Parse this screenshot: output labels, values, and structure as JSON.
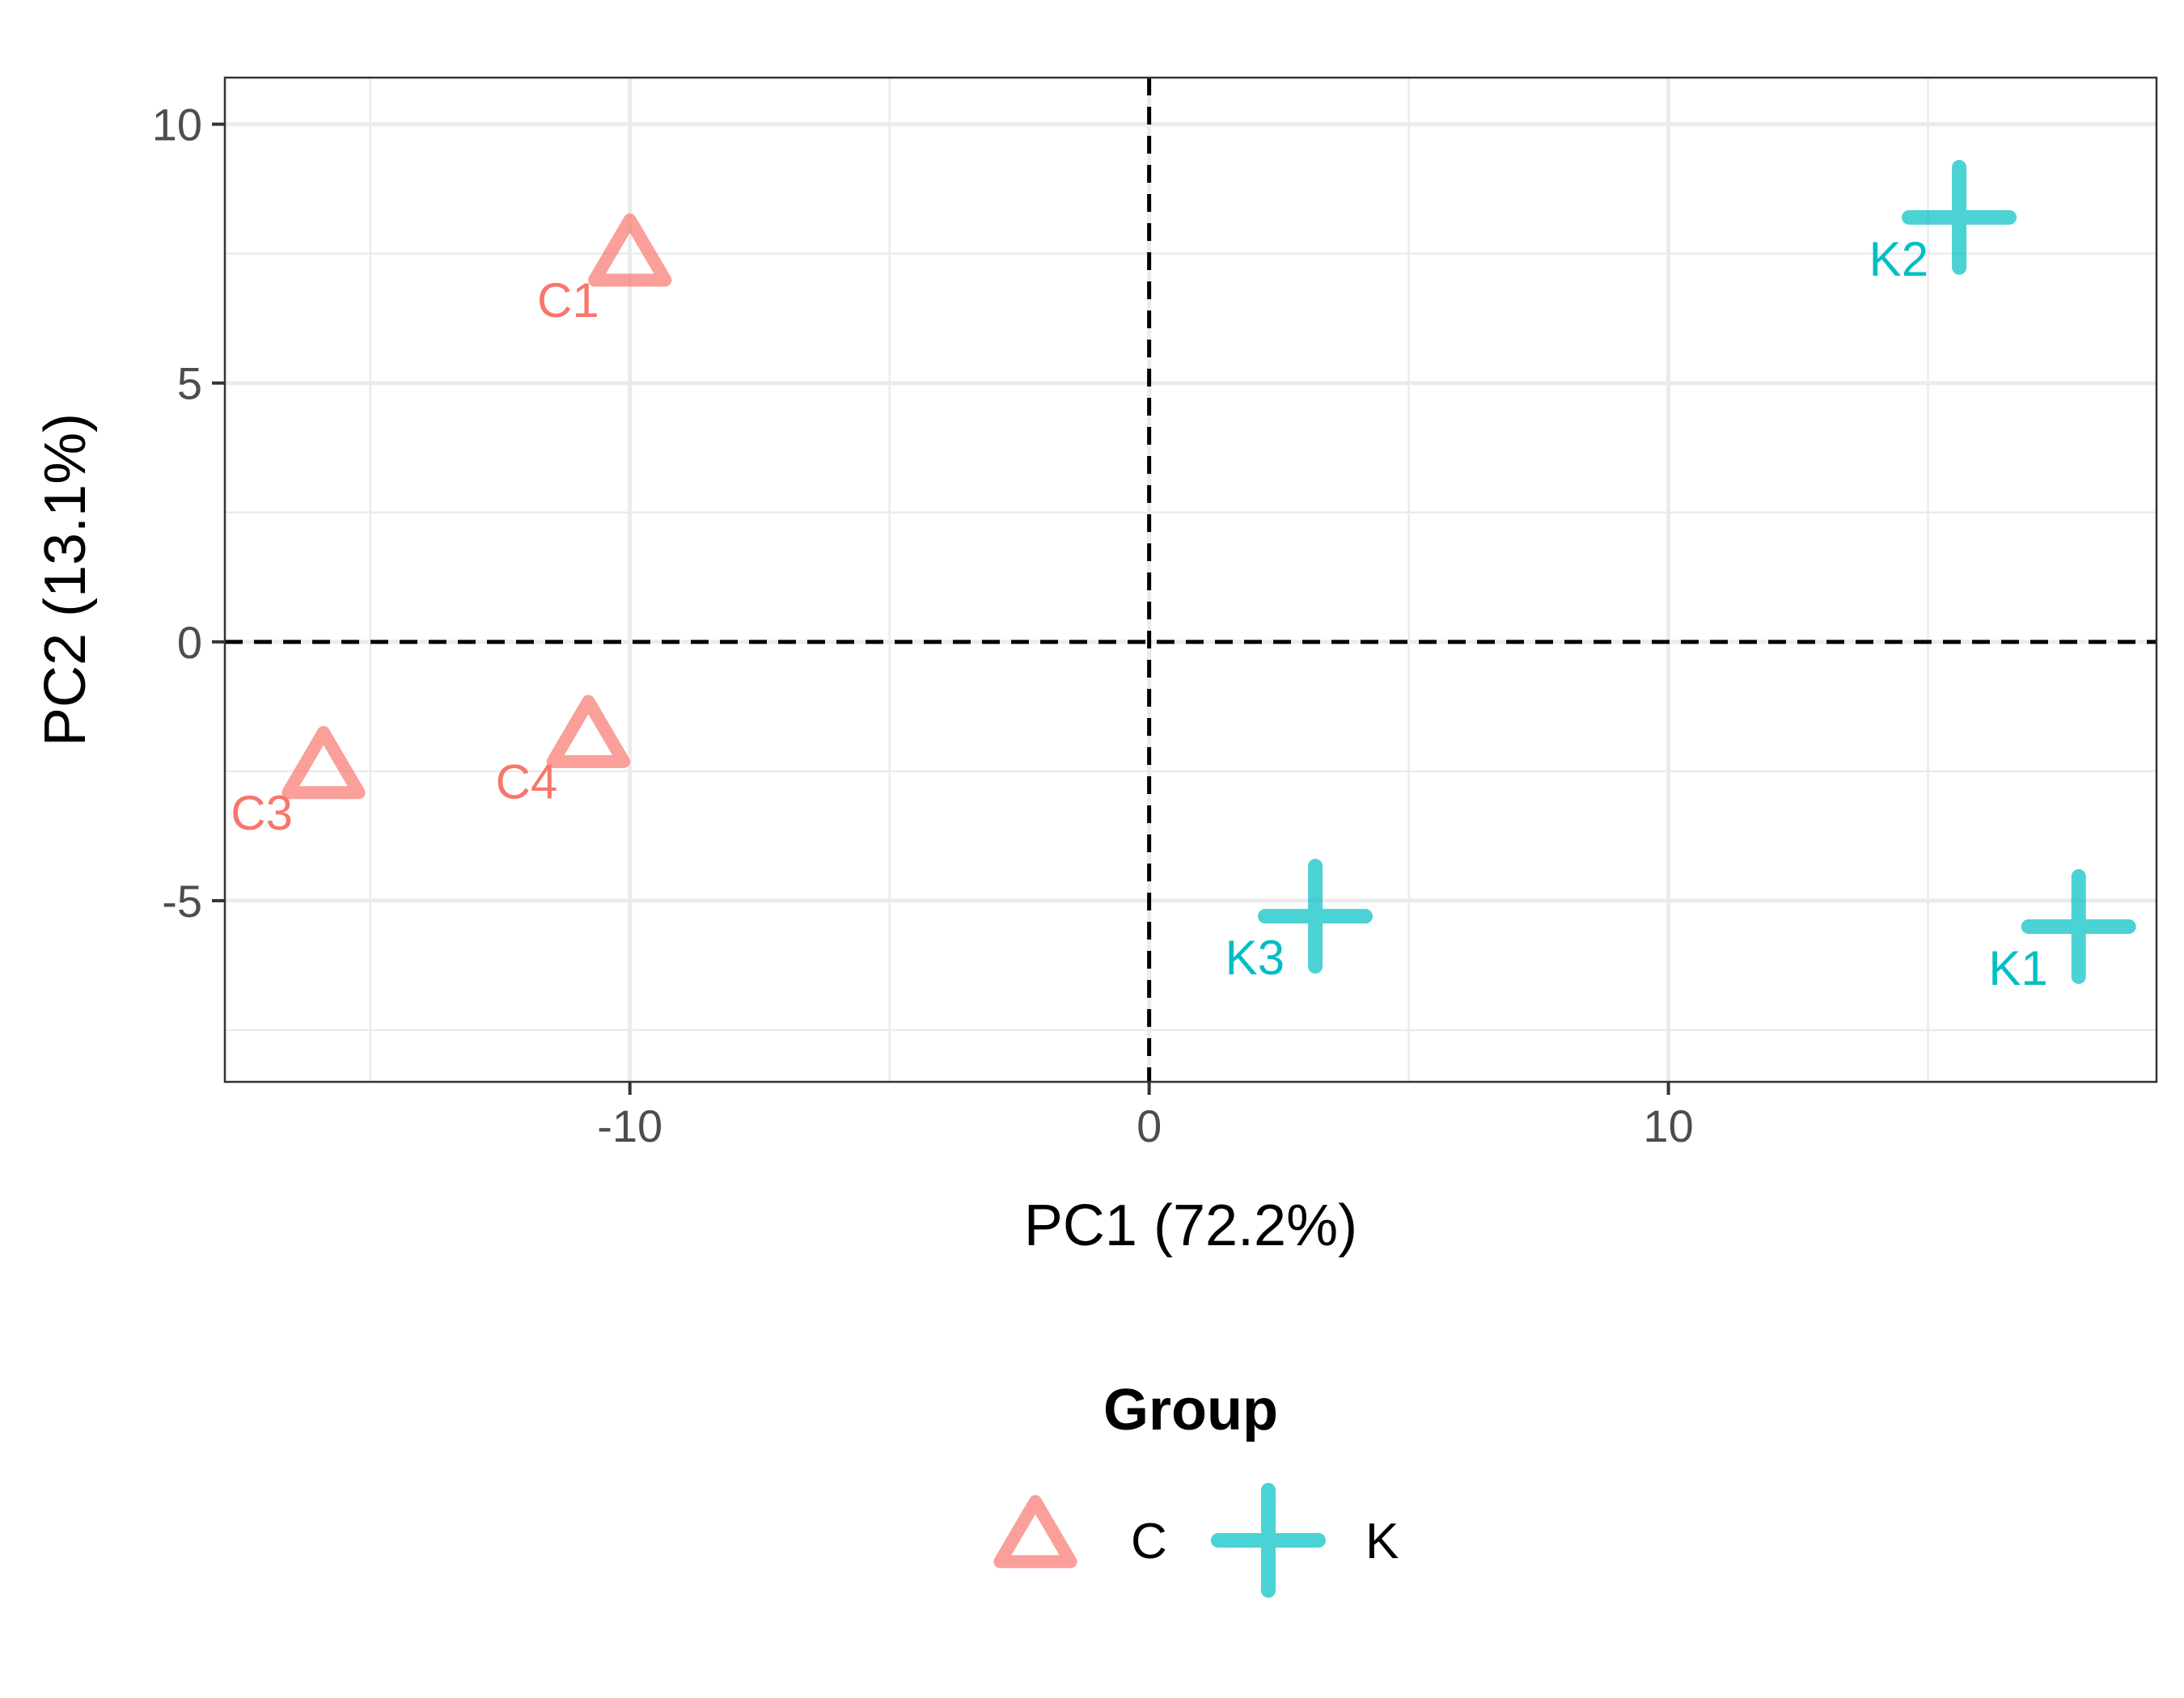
{
  "chart_data": {
    "type": "scatter",
    "xlabel": "PC1 (72.2%)",
    "ylabel": "PC2 (13.1%)",
    "xlim": [
      -17.8,
      19.4
    ],
    "ylim": [
      -8.5,
      10.9
    ],
    "x_ticks": [
      -10,
      0,
      10
    ],
    "x_tick_labels": [
      "-10",
      "0",
      "10"
    ],
    "y_ticks": [
      -5,
      0,
      5,
      10
    ],
    "y_tick_labels": [
      "-5",
      "0",
      "5",
      "10"
    ],
    "grid": true,
    "reference_lines": {
      "x": 0,
      "y": 0,
      "style": "dashed"
    },
    "legend": {
      "title": "Group",
      "position": "bottom",
      "entries": [
        {
          "label": "C",
          "shape": "triangle-open",
          "color": "#F8766D"
        },
        {
          "label": "K",
          "shape": "plus",
          "color": "#00BFC4"
        }
      ]
    },
    "series": [
      {
        "name": "C",
        "color": "#F8766D",
        "shape": "triangle-open",
        "points": [
          {
            "label": "C1",
            "x": -10.0,
            "y": 7.4
          },
          {
            "label": "C3",
            "x": -15.9,
            "y": -2.5
          },
          {
            "label": "C4",
            "x": -10.8,
            "y": -1.9
          }
        ]
      },
      {
        "name": "K",
        "color": "#00BFC4",
        "shape": "plus",
        "points": [
          {
            "label": "K1",
            "x": 17.9,
            "y": -5.5
          },
          {
            "label": "K2",
            "x": 15.6,
            "y": 8.2
          },
          {
            "label": "K3",
            "x": 3.2,
            "y": -5.3
          }
        ]
      }
    ]
  }
}
